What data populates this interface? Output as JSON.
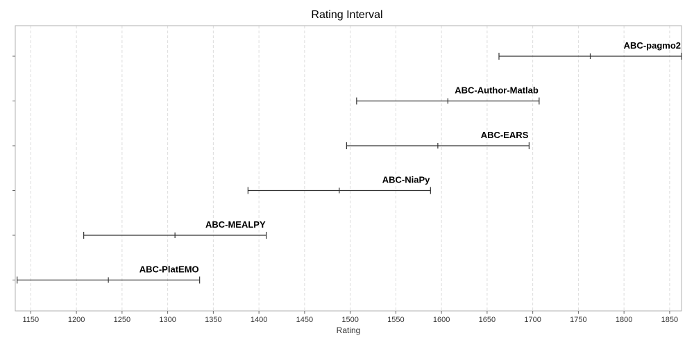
{
  "chart_data": {
    "type": "interval",
    "title": "Rating Interval",
    "xlabel": "Rating",
    "ylabel": "",
    "xlim": [
      1133,
      1863
    ],
    "xticks": [
      1150,
      1200,
      1250,
      1300,
      1350,
      1400,
      1450,
      1500,
      1550,
      1600,
      1650,
      1700,
      1750,
      1800,
      1850
    ],
    "grid": true,
    "series": [
      {
        "name": "ABC-PlatEMO",
        "low": 1135,
        "mid": 1235,
        "high": 1335
      },
      {
        "name": "ABC-MEALPY",
        "low": 1208,
        "mid": 1308,
        "high": 1408
      },
      {
        "name": "ABC-NiaPy",
        "low": 1388,
        "mid": 1488,
        "high": 1588
      },
      {
        "name": "ABC-EARS",
        "low": 1496,
        "mid": 1596,
        "high": 1696
      },
      {
        "name": "ABC-Author-Matlab",
        "low": 1507,
        "mid": 1607,
        "high": 1707
      },
      {
        "name": "ABC-pagmo2",
        "low": 1663,
        "mid": 1763,
        "high": 1863
      }
    ]
  }
}
